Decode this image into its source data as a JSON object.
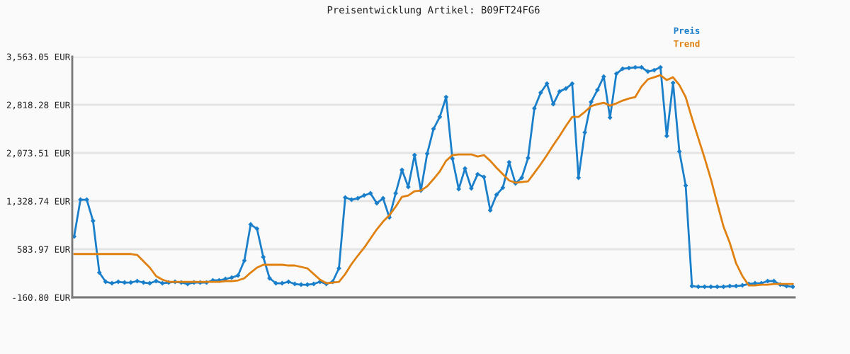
{
  "chart_data": {
    "type": "line",
    "title": "Preisentwicklung Artikel: B09FT24FG6",
    "categories": [
      null,
      null,
      null,
      null,
      null,
      null,
      null,
      null,
      null,
      null,
      null,
      null,
      null,
      null,
      null,
      null,
      null,
      null,
      null,
      null,
      null,
      null,
      null,
      null,
      null,
      null,
      null,
      null,
      null,
      null,
      null,
      null,
      null,
      null,
      null,
      null,
      null,
      null,
      null,
      null,
      null,
      null,
      null,
      null,
      null,
      null,
      null,
      null,
      null,
      null,
      null,
      null,
      null,
      null,
      null,
      null,
      null,
      null,
      null,
      null,
      null,
      null,
      null,
      null,
      null,
      null,
      null,
      null,
      null,
      null,
      null,
      null,
      null,
      null,
      null,
      null,
      null,
      null,
      null,
      null,
      null,
      null,
      null,
      null,
      null,
      null,
      null,
      null,
      null,
      null,
      null,
      null,
      null,
      null,
      null,
      null,
      null,
      null,
      null,
      null,
      null,
      null,
      null,
      null,
      null,
      null,
      null,
      null,
      null,
      null,
      null,
      null,
      null,
      null,
      null
    ],
    "series": [
      {
        "name": "Preis",
        "color": "#1a7fcb",
        "marker": "diamond",
        "values": [
          781,
          1350,
          1350,
          1022,
          222,
          80,
          58,
          80,
          69,
          69,
          91,
          69,
          58,
          91,
          58,
          69,
          80,
          69,
          47,
          69,
          69,
          69,
          102,
          102,
          124,
          146,
          178,
          408,
          967,
          901,
          463,
          135,
          58,
          58,
          80,
          47,
          36,
          36,
          47,
          80,
          47,
          80,
          288,
          1383,
          1350,
          1372,
          1416,
          1449,
          1295,
          1372,
          1076,
          1449,
          1810,
          1547,
          2040,
          1492,
          2062,
          2445,
          2631,
          2938,
          1985,
          1514,
          1832,
          1525,
          1744,
          1701,
          1186,
          1427,
          1536,
          1930,
          1602,
          1690,
          1996,
          2763,
          3004,
          3146,
          2828,
          3025,
          3069,
          3146,
          1690,
          2390,
          2861,
          3047,
          3255,
          2620,
          3299,
          3376,
          3387,
          3398,
          3398,
          3332,
          3354,
          3398,
          2336,
          3157,
          2095,
          1569,
          14,
          3,
          3,
          3,
          3,
          3,
          14,
          14,
          25,
          47,
          58,
          58,
          91,
          91,
          36,
          14,
          3
        ]
      },
      {
        "name": "Trend",
        "color": "#e0800f",
        "marker": "none",
        "values": [
          510,
          510,
          510,
          510,
          510,
          510,
          510,
          510,
          510,
          510,
          496,
          397,
          299,
          168,
          113,
          80,
          80,
          80,
          80,
          80,
          80,
          80,
          80,
          80,
          91,
          91,
          102,
          135,
          222,
          299,
          343,
          343,
          343,
          343,
          332,
          332,
          310,
          288,
          200,
          113,
          58,
          69,
          80,
          200,
          354,
          485,
          606,
          748,
          890,
          1011,
          1109,
          1241,
          1394,
          1416,
          1482,
          1492,
          1558,
          1668,
          1788,
          1952,
          2040,
          2051,
          2051,
          2051,
          2018,
          2040,
          1952,
          1843,
          1744,
          1646,
          1613,
          1624,
          1635,
          1766,
          1898,
          2040,
          2193,
          2336,
          2489,
          2631,
          2631,
          2708,
          2796,
          2828,
          2850,
          2806,
          2839,
          2883,
          2916,
          2938,
          3102,
          3212,
          3244,
          3277,
          3201,
          3244,
          3124,
          2938,
          2609,
          2303,
          1996,
          1668,
          1295,
          934,
          682,
          365,
          168,
          25,
          25,
          36,
          36,
          47,
          47,
          47,
          47
        ]
      }
    ],
    "ylim": [
      -160.8,
      3563.05
    ],
    "yticks": [
      {
        "value": -160.8,
        "label": "-160.80 EUR"
      },
      {
        "value": 583.97,
        "label": "583.97 EUR"
      },
      {
        "value": 1328.74,
        "label": "1,328.74 EUR"
      },
      {
        "value": 2073.51,
        "label": "2,073.51 EUR"
      },
      {
        "value": 2818.28,
        "label": "2,818.28 EUR"
      },
      {
        "value": 3563.05,
        "label": "3,563.05 EUR"
      }
    ],
    "grid": "y",
    "legend": "top right",
    "line_style": "solid"
  }
}
